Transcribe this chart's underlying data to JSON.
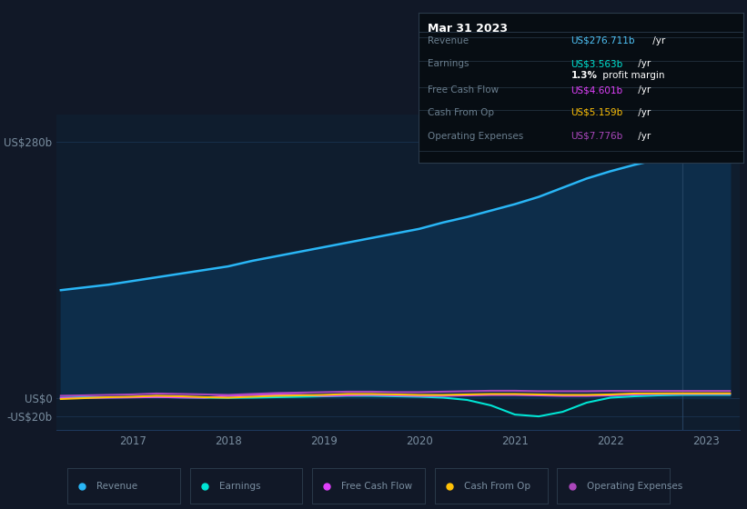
{
  "bg_color": "#111827",
  "chart_bg": "#0f1d2e",
  "tooltip": {
    "title": "Mar 31 2023",
    "rows": [
      {
        "label": "Revenue",
        "value": "US$276.711b",
        "value_color": "#4fc3f7"
      },
      {
        "label": "Earnings",
        "value": "US$3.563b",
        "value_color": "#00e5d4"
      },
      {
        "label": "",
        "value": "1.3% profit margin",
        "value_color": "#ffffff"
      },
      {
        "label": "Free Cash Flow",
        "value": "US$4.601b",
        "value_color": "#e040fb"
      },
      {
        "label": "Cash From Op",
        "value": "US$5.159b",
        "value_color": "#ffc107"
      },
      {
        "label": "Operating Expenses",
        "value": "US$7.776b",
        "value_color": "#ab47bc"
      }
    ]
  },
  "yticks": [
    "US$280b",
    "US$0",
    "-US$20b"
  ],
  "ytick_values": [
    280,
    0,
    -20
  ],
  "ylim": [
    -35,
    310
  ],
  "xtick_labels": [
    "2017",
    "2018",
    "2019",
    "2020",
    "2021",
    "2022",
    "2023"
  ],
  "xstart": 2016.2,
  "xend": 2023.35,
  "revenue_x": [
    2016.25,
    2016.5,
    2016.75,
    2017.0,
    2017.25,
    2017.5,
    2017.75,
    2018.0,
    2018.25,
    2018.5,
    2018.75,
    2019.0,
    2019.25,
    2019.5,
    2019.75,
    2020.0,
    2020.25,
    2020.5,
    2020.75,
    2021.0,
    2021.25,
    2021.5,
    2021.75,
    2022.0,
    2022.25,
    2022.5,
    2022.75,
    2023.0,
    2023.25
  ],
  "revenue_y": [
    118,
    121,
    124,
    128,
    132,
    136,
    140,
    144,
    150,
    155,
    160,
    165,
    170,
    175,
    180,
    185,
    192,
    198,
    205,
    212,
    220,
    230,
    240,
    248,
    255,
    261,
    268,
    274,
    277
  ],
  "earnings_x": [
    2016.25,
    2016.5,
    2016.75,
    2017.0,
    2017.25,
    2017.5,
    2017.75,
    2018.0,
    2018.25,
    2018.5,
    2018.75,
    2019.0,
    2019.25,
    2019.5,
    2019.75,
    2020.0,
    2020.25,
    2020.5,
    2020.75,
    2021.0,
    2021.25,
    2021.5,
    2021.75,
    2022.0,
    2022.25,
    2022.5,
    2022.75,
    2023.0,
    2023.25
  ],
  "earnings_y": [
    0.5,
    1.0,
    0.8,
    1.0,
    1.2,
    0.8,
    0.5,
    0.3,
    0.5,
    1.0,
    1.5,
    2.0,
    2.5,
    2.5,
    2.0,
    1.5,
    0.5,
    -2.0,
    -8.0,
    -18.0,
    -20.0,
    -15.0,
    -5.0,
    0.5,
    2.0,
    3.0,
    3.5,
    3.6,
    3.6
  ],
  "fcf_x": [
    2016.25,
    2016.5,
    2016.75,
    2017.0,
    2017.25,
    2017.5,
    2017.75,
    2018.0,
    2018.25,
    2018.5,
    2018.75,
    2019.0,
    2019.25,
    2019.5,
    2019.75,
    2020.0,
    2020.25,
    2020.5,
    2020.75,
    2021.0,
    2021.25,
    2021.5,
    2021.75,
    2022.0,
    2022.25,
    2022.5,
    2022.75,
    2023.0,
    2023.25
  ],
  "fcf_y": [
    0.0,
    0.3,
    0.5,
    0.8,
    1.2,
    0.8,
    0.5,
    2.5,
    3.5,
    4.0,
    3.5,
    2.5,
    3.0,
    3.5,
    3.0,
    2.5,
    2.5,
    3.0,
    3.5,
    3.5,
    3.0,
    2.5,
    2.5,
    3.0,
    4.0,
    4.5,
    4.6,
    4.6,
    4.6
  ],
  "cashop_x": [
    2016.25,
    2016.5,
    2016.75,
    2017.0,
    2017.25,
    2017.5,
    2017.75,
    2018.0,
    2018.25,
    2018.5,
    2018.75,
    2019.0,
    2019.25,
    2019.5,
    2019.75,
    2020.0,
    2020.25,
    2020.5,
    2020.75,
    2021.0,
    2021.25,
    2021.5,
    2021.75,
    2022.0,
    2022.25,
    2022.5,
    2022.75,
    2023.0,
    2023.25
  ],
  "cashop_y": [
    -1.0,
    0.0,
    1.0,
    1.5,
    2.5,
    2.0,
    1.0,
    0.5,
    1.5,
    2.5,
    3.0,
    3.5,
    4.5,
    4.5,
    4.0,
    3.5,
    3.5,
    4.0,
    4.5,
    4.5,
    4.0,
    3.5,
    3.5,
    4.0,
    5.0,
    5.1,
    5.2,
    5.2,
    5.2
  ],
  "opex_x": [
    2016.25,
    2016.5,
    2016.75,
    2017.0,
    2017.25,
    2017.5,
    2017.75,
    2018.0,
    2018.25,
    2018.5,
    2018.75,
    2019.0,
    2019.25,
    2019.5,
    2019.75,
    2020.0,
    2020.25,
    2020.5,
    2020.75,
    2021.0,
    2021.25,
    2021.5,
    2021.75,
    2022.0,
    2022.25,
    2022.5,
    2022.75,
    2023.0,
    2023.25
  ],
  "opex_y": [
    2.5,
    3.0,
    3.5,
    4.0,
    5.0,
    4.5,
    4.0,
    3.5,
    4.5,
    5.5,
    6.0,
    6.5,
    7.0,
    7.0,
    6.5,
    6.5,
    7.0,
    7.5,
    8.0,
    8.0,
    7.5,
    7.5,
    7.5,
    7.8,
    7.8,
    7.8,
    7.8,
    7.8,
    7.8
  ],
  "revenue_color": "#29b6f6",
  "revenue_fill": "#0d2d4a",
  "earnings_color": "#00e5d4",
  "fcf_color": "#e040fb",
  "cashop_color": "#ffc107",
  "opex_color": "#ab47bc",
  "grid_color": "#1e3a5f",
  "axis_label_color": "#7a8ea0",
  "tooltip_bg": "#070d13",
  "tooltip_border": "#2a3a4a",
  "tooltip_label_color": "#6a7e8e",
  "legend_bg": "#111827",
  "legend_border": "#2a3a4a",
  "vline_color": "#2a4a6a",
  "legend_items": [
    {
      "label": "Revenue",
      "color": "#29b6f6"
    },
    {
      "label": "Earnings",
      "color": "#00e5d4"
    },
    {
      "label": "Free Cash Flow",
      "color": "#e040fb"
    },
    {
      "label": "Cash From Op",
      "color": "#ffc107"
    },
    {
      "label": "Operating Expenses",
      "color": "#ab47bc"
    }
  ]
}
